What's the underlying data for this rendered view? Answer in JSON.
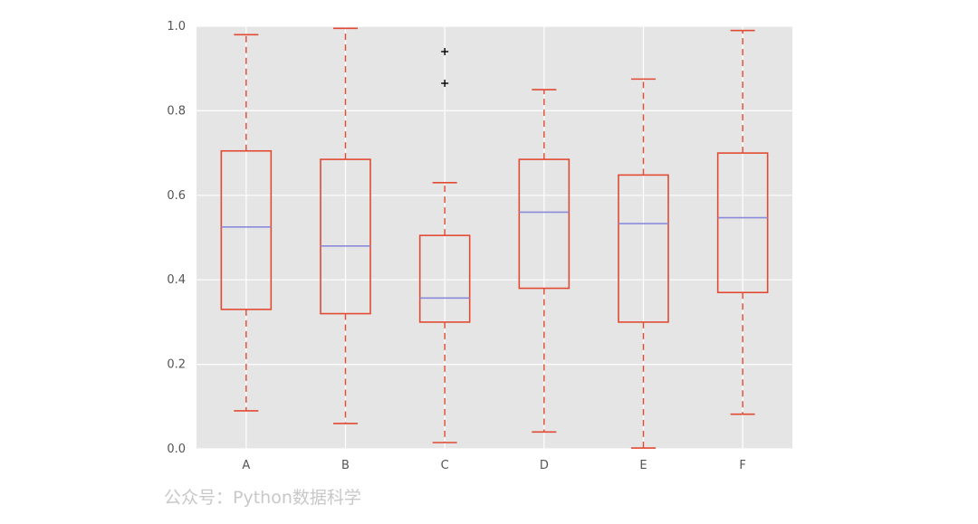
{
  "chart_data": {
    "type": "box",
    "categories": [
      "A",
      "B",
      "C",
      "D",
      "E",
      "F"
    ],
    "boxes": [
      {
        "label": "A",
        "whisker_low": 0.09,
        "q1": 0.33,
        "median": 0.525,
        "q3": 0.705,
        "whisker_high": 0.98,
        "outliers": []
      },
      {
        "label": "B",
        "whisker_low": 0.06,
        "q1": 0.32,
        "median": 0.48,
        "q3": 0.685,
        "whisker_high": 0.995,
        "outliers": []
      },
      {
        "label": "C",
        "whisker_low": 0.015,
        "q1": 0.3,
        "median": 0.357,
        "q3": 0.505,
        "whisker_high": 0.63,
        "outliers": [
          0.94,
          0.865
        ]
      },
      {
        "label": "D",
        "whisker_low": 0.04,
        "q1": 0.38,
        "median": 0.56,
        "q3": 0.685,
        "whisker_high": 0.85,
        "outliers": []
      },
      {
        "label": "E",
        "whisker_low": 0.002,
        "q1": 0.3,
        "median": 0.533,
        "q3": 0.648,
        "whisker_high": 0.875,
        "outliers": []
      },
      {
        "label": "F",
        "whisker_low": 0.082,
        "q1": 0.37,
        "median": 0.547,
        "q3": 0.7,
        "whisker_high": 0.99,
        "outliers": []
      }
    ],
    "ylim": [
      0.0,
      1.0
    ],
    "yticks": [
      "0.0",
      "0.2",
      "0.4",
      "0.6",
      "0.8",
      "1.0"
    ],
    "grid": true,
    "colors": {
      "background": "#e5e5e5",
      "grid": "#ffffff",
      "box": "#e24a33",
      "median": "#8b8bd9",
      "outlier": "#000000"
    }
  },
  "watermark": "公众号：Python数据科学"
}
